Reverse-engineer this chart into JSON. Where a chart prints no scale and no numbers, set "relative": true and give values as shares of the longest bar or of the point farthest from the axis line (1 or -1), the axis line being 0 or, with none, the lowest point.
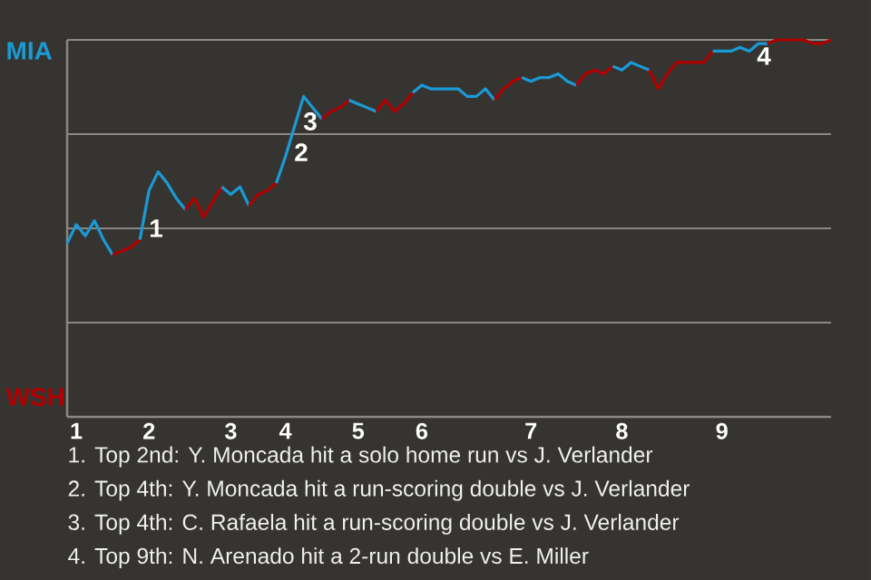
{
  "chart_data": {
    "type": "line",
    "relative": true,
    "categories": [
      null,
      "1",
      null,
      null,
      null,
      null,
      null,
      null,
      null,
      "2",
      null,
      null,
      null,
      null,
      null,
      null,
      null,
      null,
      "3",
      null,
      null,
      null,
      null,
      null,
      "4",
      null,
      null,
      null,
      null,
      null,
      null,
      null,
      "5",
      null,
      null,
      null,
      null,
      null,
      null,
      "6",
      null,
      null,
      null,
      null,
      null,
      null,
      null,
      null,
      null,
      null,
      null,
      "7",
      null,
      null,
      null,
      null,
      null,
      null,
      null,
      null,
      null,
      "8",
      null,
      null,
      null,
      null,
      null,
      null,
      null,
      null,
      null,
      null,
      "9",
      null,
      null,
      null,
      null,
      null,
      null,
      null,
      null,
      null,
      null,
      null,
      null
    ],
    "grid": "y",
    "series": [
      {
        "color": "#1a9ad6",
        "values": [
          0.46,
          0.51,
          0.48,
          0.52,
          0.47,
          0.43,
          null,
          null,
          null,
          null,
          null,
          null,
          null,
          null,
          null,
          null,
          null,
          null,
          null,
          null,
          null,
          null,
          null,
          null,
          null,
          null,
          null,
          null,
          null,
          null,
          null,
          null,
          null,
          null,
          null,
          null,
          null,
          null,
          null,
          null,
          null,
          null,
          null,
          null,
          null,
          null,
          null,
          null,
          null,
          null,
          null,
          null,
          null,
          null,
          null,
          null,
          null,
          null,
          null,
          null,
          null,
          null,
          null,
          null,
          null,
          null,
          null,
          null,
          null,
          null,
          null,
          null,
          null,
          null,
          null,
          null,
          null,
          null,
          null,
          null,
          null,
          null,
          null,
          null,
          null
        ]
      },
      {
        "color": "#b00000",
        "values": [
          null,
          null,
          null,
          null,
          null,
          0.43,
          0.44,
          0.45,
          0.47,
          null,
          null,
          null,
          null,
          null,
          null,
          null,
          null,
          null,
          null,
          null,
          null,
          null,
          null,
          null,
          null,
          null,
          null,
          null,
          null,
          null,
          null,
          null,
          null,
          null,
          null,
          null,
          null,
          null,
          null,
          null,
          null,
          null,
          null,
          null,
          null,
          null,
          null,
          null,
          null,
          null,
          null,
          null,
          null,
          null,
          null,
          null,
          null,
          null,
          null,
          null,
          null,
          null,
          null,
          null,
          null,
          null,
          null,
          null,
          null,
          null,
          null,
          null,
          null,
          null,
          null,
          null,
          null,
          null,
          null,
          null,
          null,
          null,
          null,
          null,
          null
        ]
      },
      {
        "color": "#1a9ad6",
        "values": [
          null,
          null,
          null,
          null,
          null,
          null,
          null,
          null,
          0.47,
          0.6,
          0.65,
          0.62,
          0.58,
          0.55,
          null,
          null,
          null,
          null,
          null,
          null,
          null,
          null,
          null,
          null,
          null,
          null,
          null,
          null,
          null,
          null,
          null,
          null,
          null,
          null,
          null,
          null,
          null,
          null,
          null,
          null,
          null,
          null,
          null,
          null,
          null,
          null,
          null,
          null,
          null,
          null,
          null,
          null,
          null,
          null,
          null,
          null,
          null,
          null,
          null,
          null,
          null,
          null,
          null,
          null,
          null,
          null,
          null,
          null,
          null,
          null,
          null,
          null,
          null,
          null,
          null,
          null,
          null,
          null,
          null,
          null,
          null,
          null,
          null,
          null,
          null
        ]
      },
      {
        "color": "#b00000",
        "values": [
          null,
          null,
          null,
          null,
          null,
          null,
          null,
          null,
          null,
          null,
          null,
          null,
          null,
          0.55,
          0.58,
          0.53,
          0.57,
          0.61,
          null,
          null,
          null,
          null,
          null,
          null,
          null,
          null,
          null,
          null,
          null,
          null,
          null,
          null,
          null,
          null,
          null,
          null,
          null,
          null,
          null,
          null,
          null,
          null,
          null,
          null,
          null,
          null,
          null,
          null,
          null,
          null,
          null,
          null,
          null,
          null,
          null,
          null,
          null,
          null,
          null,
          null,
          null,
          null,
          null,
          null,
          null,
          null,
          null,
          null,
          null,
          null,
          null,
          null,
          null,
          null,
          null,
          null,
          null,
          null,
          null,
          null,
          null,
          null,
          null,
          null,
          null
        ]
      },
      {
        "color": "#1a9ad6",
        "values": [
          null,
          null,
          null,
          null,
          null,
          null,
          null,
          null,
          null,
          null,
          null,
          null,
          null,
          null,
          null,
          null,
          null,
          0.61,
          0.59,
          0.61,
          0.56,
          null,
          null,
          null,
          null,
          null,
          null,
          null,
          null,
          null,
          null,
          null,
          null,
          null,
          null,
          null,
          null,
          null,
          null,
          null,
          null,
          null,
          null,
          null,
          null,
          null,
          null,
          null,
          null,
          null,
          null,
          null,
          null,
          null,
          null,
          null,
          null,
          null,
          null,
          null,
          null,
          null,
          null,
          null,
          null,
          null,
          null,
          null,
          null,
          null,
          null,
          null,
          null,
          null,
          null,
          null,
          null,
          null,
          null,
          null,
          null,
          null,
          null,
          null,
          null
        ]
      },
      {
        "color": "#b00000",
        "values": [
          null,
          null,
          null,
          null,
          null,
          null,
          null,
          null,
          null,
          null,
          null,
          null,
          null,
          null,
          null,
          null,
          null,
          null,
          null,
          null,
          0.56,
          0.59,
          0.6,
          0.62,
          null,
          null,
          null,
          null,
          null,
          null,
          null,
          null,
          null,
          null,
          null,
          null,
          null,
          null,
          null,
          null,
          null,
          null,
          null,
          null,
          null,
          null,
          null,
          null,
          null,
          null,
          null,
          null,
          null,
          null,
          null,
          null,
          null,
          null,
          null,
          null,
          null,
          null,
          null,
          null,
          null,
          null,
          null,
          null,
          null,
          null,
          null,
          null,
          null,
          null,
          null,
          null,
          null,
          null,
          null,
          null,
          null,
          null,
          null,
          null,
          null
        ]
      },
      {
        "color": "#1a9ad6",
        "values": [
          null,
          null,
          null,
          null,
          null,
          null,
          null,
          null,
          null,
          null,
          null,
          null,
          null,
          null,
          null,
          null,
          null,
          null,
          null,
          null,
          null,
          null,
          null,
          0.62,
          0.69,
          0.77,
          0.85,
          0.82,
          0.79,
          null,
          null,
          null,
          null,
          null,
          null,
          null,
          null,
          null,
          null,
          null,
          null,
          null,
          null,
          null,
          null,
          null,
          null,
          null,
          null,
          null,
          null,
          null,
          null,
          null,
          null,
          null,
          null,
          null,
          null,
          null,
          null,
          null,
          null,
          null,
          null,
          null,
          null,
          null,
          null,
          null,
          null,
          null,
          null,
          null,
          null,
          null,
          null,
          null,
          null,
          null,
          null,
          null,
          null,
          null,
          null
        ]
      },
      {
        "color": "#b00000",
        "values": [
          null,
          null,
          null,
          null,
          null,
          null,
          null,
          null,
          null,
          null,
          null,
          null,
          null,
          null,
          null,
          null,
          null,
          null,
          null,
          null,
          null,
          null,
          null,
          null,
          null,
          null,
          null,
          null,
          0.79,
          0.81,
          0.82,
          0.84,
          null,
          null,
          null,
          null,
          null,
          null,
          null,
          null,
          null,
          null,
          null,
          null,
          null,
          null,
          null,
          null,
          null,
          null,
          null,
          null,
          null,
          null,
          null,
          null,
          null,
          null,
          null,
          null,
          null,
          null,
          null,
          null,
          null,
          null,
          null,
          null,
          null,
          null,
          null,
          null,
          null,
          null,
          null,
          null,
          null,
          null,
          null,
          null,
          null,
          null,
          null,
          null,
          null
        ]
      },
      {
        "color": "#1a9ad6",
        "values": [
          null,
          null,
          null,
          null,
          null,
          null,
          null,
          null,
          null,
          null,
          null,
          null,
          null,
          null,
          null,
          null,
          null,
          null,
          null,
          null,
          null,
          null,
          null,
          null,
          null,
          null,
          null,
          null,
          null,
          null,
          null,
          0.84,
          0.83,
          0.82,
          0.81,
          null,
          null,
          null,
          null,
          null,
          null,
          null,
          null,
          null,
          null,
          null,
          null,
          null,
          null,
          null,
          null,
          null,
          null,
          null,
          null,
          null,
          null,
          null,
          null,
          null,
          null,
          null,
          null,
          null,
          null,
          null,
          null,
          null,
          null,
          null,
          null,
          null,
          null,
          null,
          null,
          null,
          null,
          null,
          null,
          null,
          null,
          null,
          null,
          null,
          null
        ]
      },
      {
        "color": "#b00000",
        "values": [
          null,
          null,
          null,
          null,
          null,
          null,
          null,
          null,
          null,
          null,
          null,
          null,
          null,
          null,
          null,
          null,
          null,
          null,
          null,
          null,
          null,
          null,
          null,
          null,
          null,
          null,
          null,
          null,
          null,
          null,
          null,
          null,
          null,
          null,
          0.81,
          0.84,
          0.81,
          0.83,
          0.86,
          null,
          null,
          null,
          null,
          null,
          null,
          null,
          null,
          null,
          null,
          null,
          null,
          null,
          null,
          null,
          null,
          null,
          null,
          null,
          null,
          null,
          null,
          null,
          null,
          null,
          null,
          null,
          null,
          null,
          null,
          null,
          null,
          null,
          null,
          null,
          null,
          null,
          null,
          null,
          null,
          null,
          null,
          null,
          null,
          null,
          null
        ]
      },
      {
        "color": "#1a9ad6",
        "values": [
          null,
          null,
          null,
          null,
          null,
          null,
          null,
          null,
          null,
          null,
          null,
          null,
          null,
          null,
          null,
          null,
          null,
          null,
          null,
          null,
          null,
          null,
          null,
          null,
          null,
          null,
          null,
          null,
          null,
          null,
          null,
          null,
          null,
          null,
          null,
          null,
          null,
          null,
          0.86,
          0.88,
          0.87,
          0.87,
          0.87,
          0.87,
          0.85,
          0.85,
          0.87,
          0.84,
          null,
          null,
          null,
          null,
          null,
          null,
          null,
          null,
          null,
          null,
          null,
          null,
          null,
          null,
          null,
          null,
          null,
          null,
          null,
          null,
          null,
          null,
          null,
          null,
          null,
          null,
          null,
          null,
          null,
          null,
          null,
          null,
          null,
          null,
          null,
          null,
          null
        ]
      },
      {
        "color": "#b00000",
        "values": [
          null,
          null,
          null,
          null,
          null,
          null,
          null,
          null,
          null,
          null,
          null,
          null,
          null,
          null,
          null,
          null,
          null,
          null,
          null,
          null,
          null,
          null,
          null,
          null,
          null,
          null,
          null,
          null,
          null,
          null,
          null,
          null,
          null,
          null,
          null,
          null,
          null,
          null,
          null,
          null,
          null,
          null,
          null,
          null,
          null,
          null,
          null,
          0.84,
          0.87,
          0.89,
          0.9,
          null,
          null,
          null,
          null,
          null,
          null,
          null,
          null,
          null,
          null,
          null,
          null,
          null,
          null,
          null,
          null,
          null,
          null,
          null,
          null,
          null,
          null,
          null,
          null,
          null,
          null,
          null,
          null,
          null,
          null,
          null,
          null,
          null,
          null
        ]
      },
      {
        "color": "#1a9ad6",
        "values": [
          null,
          null,
          null,
          null,
          null,
          null,
          null,
          null,
          null,
          null,
          null,
          null,
          null,
          null,
          null,
          null,
          null,
          null,
          null,
          null,
          null,
          null,
          null,
          null,
          null,
          null,
          null,
          null,
          null,
          null,
          null,
          null,
          null,
          null,
          null,
          null,
          null,
          null,
          null,
          null,
          null,
          null,
          null,
          null,
          null,
          null,
          null,
          null,
          null,
          null,
          0.9,
          0.89,
          0.9,
          0.9,
          0.91,
          0.89,
          0.88,
          null,
          null,
          null,
          null,
          null,
          null,
          null,
          null,
          null,
          null,
          null,
          null,
          null,
          null,
          null,
          null,
          null,
          null,
          null,
          null,
          null,
          null,
          null,
          null,
          null,
          null,
          null,
          null
        ]
      },
      {
        "color": "#b00000",
        "values": [
          null,
          null,
          null,
          null,
          null,
          null,
          null,
          null,
          null,
          null,
          null,
          null,
          null,
          null,
          null,
          null,
          null,
          null,
          null,
          null,
          null,
          null,
          null,
          null,
          null,
          null,
          null,
          null,
          null,
          null,
          null,
          null,
          null,
          null,
          null,
          null,
          null,
          null,
          null,
          null,
          null,
          null,
          null,
          null,
          null,
          null,
          null,
          null,
          null,
          null,
          null,
          null,
          null,
          null,
          null,
          null,
          0.88,
          0.91,
          0.92,
          0.91,
          0.93,
          null,
          null,
          null,
          null,
          null,
          null,
          null,
          null,
          null,
          null,
          null,
          null,
          null,
          null,
          null,
          null,
          null,
          null,
          null,
          null,
          null,
          null,
          null,
          null
        ]
      },
      {
        "color": "#1a9ad6",
        "values": [
          null,
          null,
          null,
          null,
          null,
          null,
          null,
          null,
          null,
          null,
          null,
          null,
          null,
          null,
          null,
          null,
          null,
          null,
          null,
          null,
          null,
          null,
          null,
          null,
          null,
          null,
          null,
          null,
          null,
          null,
          null,
          null,
          null,
          null,
          null,
          null,
          null,
          null,
          null,
          null,
          null,
          null,
          null,
          null,
          null,
          null,
          null,
          null,
          null,
          null,
          null,
          null,
          null,
          null,
          null,
          null,
          null,
          null,
          null,
          null,
          0.93,
          0.92,
          0.94,
          0.93,
          0.92,
          null,
          null,
          null,
          null,
          null,
          null,
          null,
          null,
          null,
          null,
          null,
          null,
          null,
          null,
          null,
          null,
          null,
          null,
          null,
          null
        ]
      },
      {
        "color": "#b00000",
        "values": [
          null,
          null,
          null,
          null,
          null,
          null,
          null,
          null,
          null,
          null,
          null,
          null,
          null,
          null,
          null,
          null,
          null,
          null,
          null,
          null,
          null,
          null,
          null,
          null,
          null,
          null,
          null,
          null,
          null,
          null,
          null,
          null,
          null,
          null,
          null,
          null,
          null,
          null,
          null,
          null,
          null,
          null,
          null,
          null,
          null,
          null,
          null,
          null,
          null,
          null,
          null,
          null,
          null,
          null,
          null,
          null,
          null,
          null,
          null,
          null,
          null,
          null,
          null,
          null,
          0.92,
          0.87,
          0.91,
          0.94,
          0.94,
          0.94,
          0.94,
          0.97,
          null,
          null,
          null,
          null,
          null,
          null,
          null,
          null,
          null,
          null,
          null,
          null,
          null
        ]
      },
      {
        "color": "#1a9ad6",
        "values": [
          null,
          null,
          null,
          null,
          null,
          null,
          null,
          null,
          null,
          null,
          null,
          null,
          null,
          null,
          null,
          null,
          null,
          null,
          null,
          null,
          null,
          null,
          null,
          null,
          null,
          null,
          null,
          null,
          null,
          null,
          null,
          null,
          null,
          null,
          null,
          null,
          null,
          null,
          null,
          null,
          null,
          null,
          null,
          null,
          null,
          null,
          null,
          null,
          null,
          null,
          null,
          null,
          null,
          null,
          null,
          null,
          null,
          null,
          null,
          null,
          null,
          null,
          null,
          null,
          null,
          null,
          null,
          null,
          null,
          null,
          null,
          0.97,
          0.97,
          0.97,
          0.98,
          0.97,
          0.99,
          0.99,
          null,
          null,
          null,
          null,
          null,
          null,
          null
        ]
      },
      {
        "color": "#b00000",
        "values": [
          null,
          null,
          null,
          null,
          null,
          null,
          null,
          null,
          null,
          null,
          null,
          null,
          null,
          null,
          null,
          null,
          null,
          null,
          null,
          null,
          null,
          null,
          null,
          null,
          null,
          null,
          null,
          null,
          null,
          null,
          null,
          null,
          null,
          null,
          null,
          null,
          null,
          null,
          null,
          null,
          null,
          null,
          null,
          null,
          null,
          null,
          null,
          null,
          null,
          null,
          null,
          null,
          null,
          null,
          null,
          null,
          null,
          null,
          null,
          null,
          null,
          null,
          null,
          null,
          null,
          null,
          null,
          null,
          null,
          null,
          null,
          null,
          null,
          null,
          null,
          null,
          null,
          0.99,
          1.0,
          1.0,
          1.0,
          1.0,
          0.99,
          0.99,
          1.0
        ]
      }
    ],
    "annotations": [
      "MIA",
      "WSH",
      "1",
      "2",
      "3",
      "4",
      "1. Top 2nd: Y. Moncada hit a solo home run vs J. Verlander",
      "2. Top 4th: Y. Moncada hit a run-scoring double vs J. Verlander",
      "3. Top 4th: C. Rafaela hit a run-scoring double vs J. Verlander",
      "4. Top 9th: N. Arenado hit a 2-run double vs E. Miller"
    ]
  }
}
